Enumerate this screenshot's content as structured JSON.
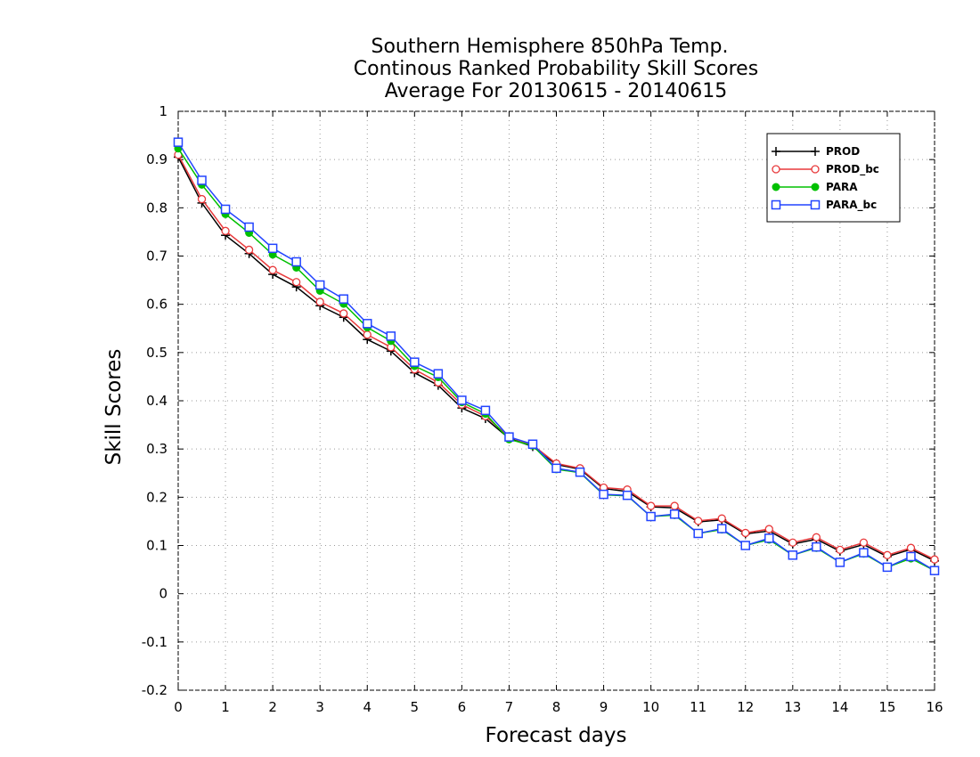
{
  "chart_data": {
    "type": "line",
    "title_lines": [
      "Southern Hemisphere 850hPa Temp.",
      "Continous Ranked Probability Skill Scores",
      "Average For 20130615 - 20140615"
    ],
    "xlabel": "Forecast days",
    "ylabel": "Skill Scores",
    "xlim": [
      0,
      16
    ],
    "ylim": [
      -0.2,
      1
    ],
    "x_ticks": [
      "0",
      "1",
      "2",
      "3",
      "4",
      "5",
      "6",
      "7",
      "8",
      "9",
      "10",
      "11",
      "12",
      "13",
      "14",
      "15",
      "16"
    ],
    "y_ticks": [
      "-0.2",
      "-0.1",
      "0",
      "0.1",
      "0.2",
      "0.3",
      "0.4",
      "0.5",
      "0.6",
      "0.7",
      "0.8",
      "0.9",
      "1"
    ],
    "grid": true,
    "legend_position": "top-right",
    "x": [
      0,
      0.5,
      1,
      1.5,
      2,
      2.5,
      3,
      3.5,
      4,
      4.5,
      5,
      5.5,
      6,
      6.5,
      7,
      7.5,
      8,
      8.5,
      9,
      9.5,
      10,
      10.5,
      11,
      11.5,
      12,
      12.5,
      13,
      13.5,
      14,
      14.5,
      15,
      15.5,
      16
    ],
    "series": [
      {
        "name": "PROD",
        "color": "#000000",
        "marker": "plus",
        "values": [
          0.905,
          0.81,
          0.743,
          0.705,
          0.662,
          0.636,
          0.597,
          0.573,
          0.527,
          0.503,
          0.458,
          0.432,
          0.385,
          0.363,
          0.322,
          0.305,
          0.268,
          0.258,
          0.218,
          0.212,
          0.18,
          0.178,
          0.149,
          0.153,
          0.124,
          0.13,
          0.103,
          0.113,
          0.088,
          0.102,
          0.077,
          0.092,
          0.068
        ]
      },
      {
        "name": "PROD_bc",
        "color": "#e8393b",
        "marker": "circle",
        "values": [
          0.91,
          0.818,
          0.752,
          0.713,
          0.671,
          0.646,
          0.605,
          0.581,
          0.537,
          0.511,
          0.465,
          0.438,
          0.392,
          0.368,
          0.325,
          0.308,
          0.27,
          0.26,
          0.22,
          0.216,
          0.182,
          0.182,
          0.151,
          0.156,
          0.126,
          0.134,
          0.106,
          0.117,
          0.091,
          0.106,
          0.08,
          0.095,
          0.071
        ]
      },
      {
        "name": "PARA",
        "color": "#00c000",
        "marker": "filled-circle",
        "values": [
          0.923,
          0.848,
          0.787,
          0.748,
          0.703,
          0.676,
          0.628,
          0.601,
          0.552,
          0.524,
          0.472,
          0.449,
          0.397,
          0.373,
          0.32,
          0.307,
          0.258,
          0.251,
          0.205,
          0.203,
          0.16,
          0.163,
          0.125,
          0.133,
          0.1,
          0.112,
          0.08,
          0.095,
          0.065,
          0.083,
          0.055,
          0.073,
          0.048
        ]
      },
      {
        "name": "PARA_bc",
        "color": "#2244ff",
        "marker": "square",
        "values": [
          0.936,
          0.857,
          0.797,
          0.76,
          0.716,
          0.688,
          0.64,
          0.611,
          0.56,
          0.534,
          0.48,
          0.456,
          0.401,
          0.38,
          0.325,
          0.31,
          0.26,
          0.252,
          0.206,
          0.204,
          0.16,
          0.165,
          0.125,
          0.135,
          0.1,
          0.115,
          0.08,
          0.097,
          0.065,
          0.085,
          0.055,
          0.077,
          0.048
        ]
      }
    ]
  }
}
